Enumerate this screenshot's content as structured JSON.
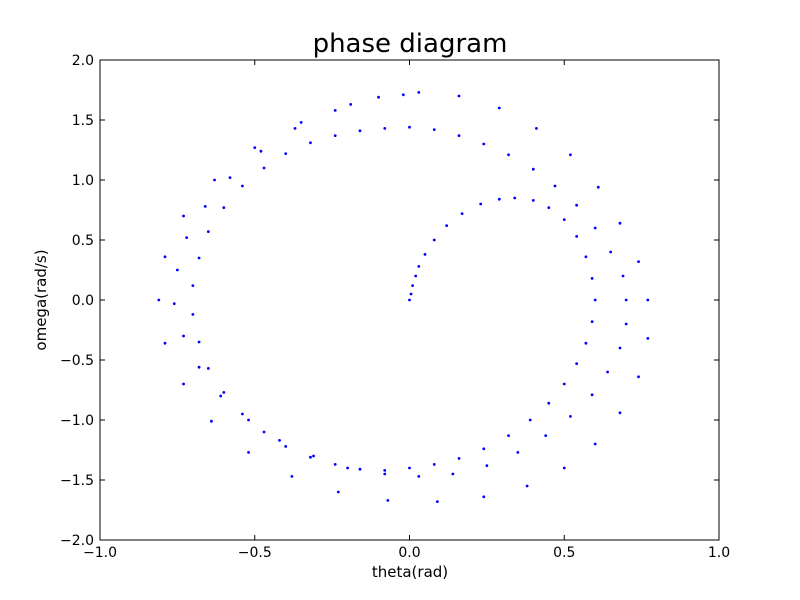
{
  "chart_data": {
    "type": "scatter",
    "title": "phase diagram",
    "xlabel": "theta(rad)",
    "ylabel": "omega(rad/s)",
    "xlim": [
      -1.0,
      1.0
    ],
    "ylim": [
      -2.0,
      2.0
    ],
    "xticks": [
      -1.0,
      -0.5,
      0.0,
      0.5,
      1.0
    ],
    "yticks": [
      -2.0,
      -1.5,
      -1.0,
      -0.5,
      0.0,
      0.5,
      1.0,
      1.5,
      2.0
    ],
    "xtick_labels": [
      "−1.0",
      "−0.5",
      "0.0",
      "0.5",
      "1.0"
    ],
    "ytick_labels": [
      "−2.0",
      "−1.5",
      "−1.0",
      "−0.5",
      "0.0",
      "0.5",
      "1.0",
      "1.5",
      "2.0"
    ],
    "grid": false,
    "legend": "none",
    "marker_color": "#0000ff",
    "series": [
      {
        "values_note_free": true,
        "points": [
          [
            0.0,
            0.0
          ],
          [
            0.005,
            0.05
          ],
          [
            0.01,
            0.12
          ],
          [
            0.02,
            0.2
          ],
          [
            0.03,
            0.28
          ],
          [
            0.05,
            0.38
          ],
          [
            0.08,
            0.5
          ],
          [
            0.12,
            0.62
          ],
          [
            0.17,
            0.72
          ],
          [
            0.23,
            0.8
          ],
          [
            0.29,
            0.84
          ],
          [
            0.34,
            0.85
          ],
          [
            0.4,
            0.83
          ],
          [
            0.45,
            0.77
          ],
          [
            0.5,
            0.67
          ],
          [
            0.54,
            0.53
          ],
          [
            0.57,
            0.36
          ],
          [
            0.59,
            0.18
          ],
          [
            0.6,
            0.0
          ],
          [
            0.59,
            -0.18
          ],
          [
            0.57,
            -0.36
          ],
          [
            0.54,
            -0.53
          ],
          [
            0.5,
            -0.7
          ],
          [
            0.45,
            -0.86
          ],
          [
            0.39,
            -1.0
          ],
          [
            0.32,
            -1.13
          ],
          [
            0.24,
            -1.24
          ],
          [
            0.16,
            -1.32
          ],
          [
            0.08,
            -1.37
          ],
          [
            0.0,
            -1.4
          ],
          [
            -0.08,
            -1.42
          ],
          [
            -0.16,
            -1.41
          ],
          [
            -0.24,
            -1.37
          ],
          [
            -0.32,
            -1.31
          ],
          [
            -0.4,
            -1.22
          ],
          [
            -0.47,
            -1.1
          ],
          [
            -0.54,
            -0.95
          ],
          [
            -0.6,
            -0.77
          ],
          [
            -0.65,
            -0.57
          ],
          [
            -0.68,
            -0.35
          ],
          [
            -0.7,
            -0.12
          ],
          [
            -0.7,
            0.12
          ],
          [
            -0.68,
            0.35
          ],
          [
            -0.65,
            0.57
          ],
          [
            -0.6,
            0.77
          ],
          [
            -0.54,
            0.95
          ],
          [
            -0.47,
            1.1
          ],
          [
            -0.4,
            1.22
          ],
          [
            -0.32,
            1.31
          ],
          [
            -0.24,
            1.37
          ],
          [
            -0.16,
            1.41
          ],
          [
            -0.08,
            1.43
          ],
          [
            0.0,
            1.44
          ],
          [
            0.08,
            1.42
          ],
          [
            0.16,
            1.37
          ],
          [
            0.24,
            1.3
          ],
          [
            0.32,
            1.21
          ],
          [
            0.4,
            1.09
          ],
          [
            0.47,
            0.95
          ],
          [
            0.54,
            0.79
          ],
          [
            0.6,
            0.6
          ],
          [
            0.65,
            0.4
          ],
          [
            0.69,
            0.2
          ],
          [
            0.7,
            0.0
          ],
          [
            0.7,
            -0.2
          ],
          [
            0.68,
            -0.4
          ],
          [
            0.64,
            -0.6
          ],
          [
            0.59,
            -0.79
          ],
          [
            0.52,
            -0.97
          ],
          [
            0.44,
            -1.13
          ],
          [
            0.35,
            -1.27
          ],
          [
            0.25,
            -1.38
          ],
          [
            0.14,
            -1.45
          ],
          [
            0.03,
            -1.47
          ],
          [
            -0.08,
            -1.45
          ],
          [
            -0.2,
            -1.4
          ],
          [
            -0.31,
            -1.3
          ],
          [
            -0.42,
            -1.17
          ],
          [
            -0.52,
            -1.0
          ],
          [
            -0.61,
            -0.8
          ],
          [
            -0.68,
            -0.56
          ],
          [
            -0.73,
            -0.3
          ],
          [
            -0.76,
            -0.03
          ],
          [
            -0.75,
            0.25
          ],
          [
            -0.72,
            0.52
          ],
          [
            -0.66,
            0.78
          ],
          [
            -0.58,
            1.02
          ],
          [
            -0.48,
            1.24
          ],
          [
            -0.37,
            1.43
          ],
          [
            -0.24,
            1.58
          ],
          [
            -0.1,
            1.69
          ],
          [
            0.03,
            1.73
          ],
          [
            0.16,
            1.7
          ],
          [
            0.29,
            1.6
          ],
          [
            0.41,
            1.43
          ],
          [
            0.52,
            1.21
          ],
          [
            0.61,
            0.94
          ],
          [
            0.68,
            0.64
          ],
          [
            0.74,
            0.32
          ],
          [
            0.77,
            0.0
          ],
          [
            0.77,
            -0.32
          ],
          [
            0.74,
            -0.64
          ],
          [
            0.68,
            -0.94
          ],
          [
            0.6,
            -1.2
          ],
          [
            0.5,
            -1.4
          ],
          [
            0.38,
            -1.55
          ],
          [
            0.24,
            -1.64
          ],
          [
            0.09,
            -1.68
          ],
          [
            -0.07,
            -1.67
          ],
          [
            -0.23,
            -1.6
          ],
          [
            -0.38,
            -1.47
          ],
          [
            -0.52,
            -1.27
          ],
          [
            -0.64,
            -1.01
          ],
          [
            -0.73,
            -0.7
          ],
          [
            -0.79,
            -0.36
          ],
          [
            -0.81,
            0.0
          ],
          [
            -0.79,
            0.36
          ],
          [
            -0.73,
            0.7
          ],
          [
            -0.63,
            1.0
          ],
          [
            -0.5,
            1.27
          ],
          [
            -0.35,
            1.48
          ],
          [
            -0.19,
            1.63
          ],
          [
            -0.02,
            1.71
          ]
        ]
      }
    ]
  }
}
